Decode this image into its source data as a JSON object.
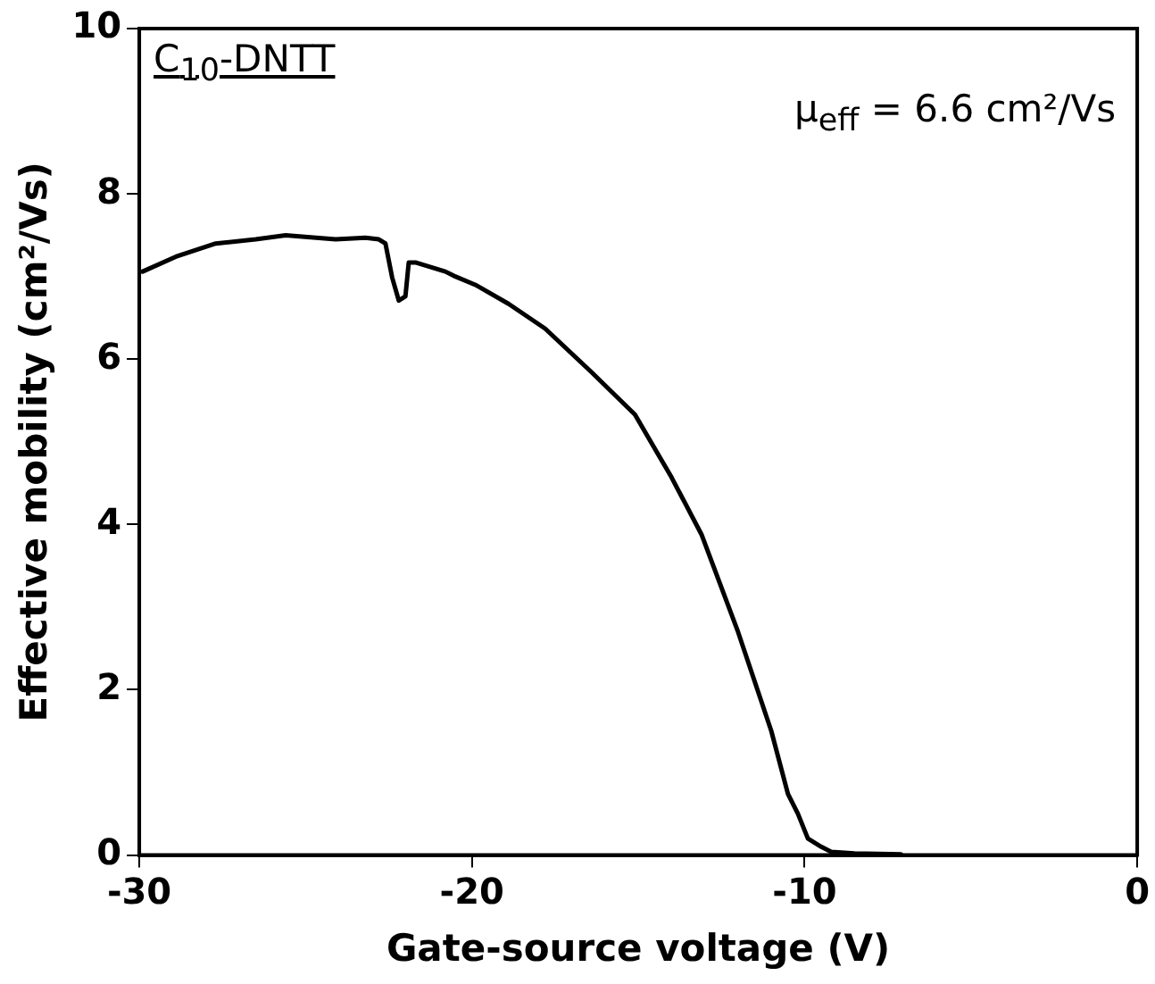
{
  "chart_data": {
    "type": "line",
    "xlabel": "Gate-source voltage (V)",
    "ylabel": "Effective mobility (cm²/Vs)",
    "annotations": [
      "C$_{10}$-DNTT",
      "μ$_{eff}$ = 6.6 cm²/Vs"
    ],
    "xlim": [
      -30,
      0
    ],
    "xticks": [
      -30,
      -20,
      -10,
      0
    ],
    "ylim": [
      0,
      10
    ],
    "yticks": [
      0,
      2,
      4,
      6,
      8,
      10
    ],
    "grid": false,
    "legend": false,
    "marker": "none",
    "line_style": "solid",
    "series": [
      {
        "color": "#000000",
        "x": [
          -29.9,
          -28.9,
          -27.7,
          -26.5,
          -25.6,
          -24.1,
          -23.2,
          -22.8,
          -22.6,
          -22.4,
          -22.2,
          -22.0,
          -21.9,
          -21.7,
          -20.8,
          -20.5,
          -19.9,
          -18.9,
          -17.8,
          -16.4,
          -15.1,
          -14.0,
          -13.1,
          -12.0,
          -11.0,
          -10.5,
          -10.2,
          -9.9,
          -9.5,
          -9.2,
          -8.5,
          -7.1
        ],
        "values": [
          7.06,
          7.24,
          7.4,
          7.45,
          7.5,
          7.45,
          7.47,
          7.45,
          7.4,
          6.99,
          6.71,
          6.76,
          7.17,
          7.17,
          7.06,
          7.0,
          6.9,
          6.67,
          6.37,
          5.84,
          5.33,
          4.57,
          3.88,
          2.7,
          1.5,
          0.74,
          0.5,
          0.2,
          0.1,
          0.04,
          0.02,
          0.01
        ]
      }
    ]
  }
}
